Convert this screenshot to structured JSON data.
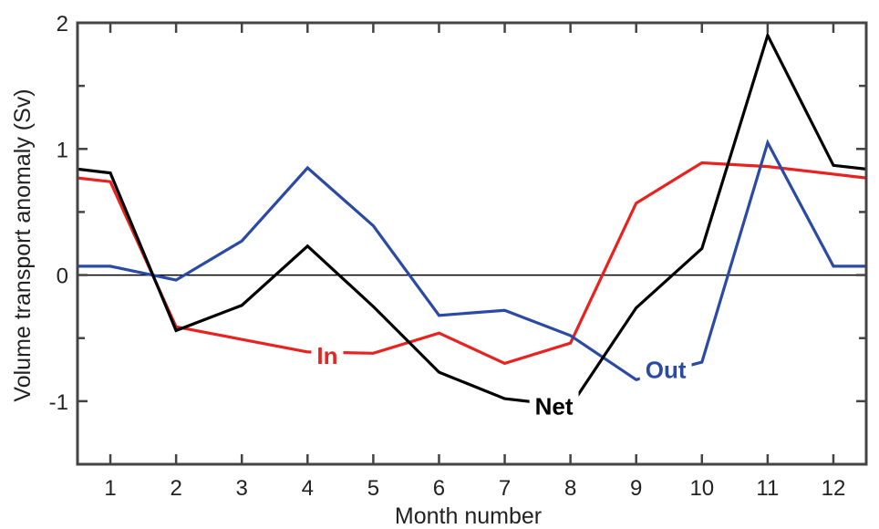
{
  "chart_data": {
    "type": "line",
    "xlabel": "Month number",
    "ylabel": "Volume transport anomaly (Sv)",
    "xlim": [
      0.5,
      12.5
    ],
    "ylim": [
      -1.5,
      2
    ],
    "x_ticks": [
      1,
      2,
      3,
      4,
      5,
      6,
      7,
      8,
      9,
      10,
      11,
      12
    ],
    "x_tick_labels": [
      "1",
      "2",
      "3",
      "4",
      "5",
      "6",
      "7",
      "8",
      "9",
      "10",
      "11",
      "12"
    ],
    "y_ticks": [
      -1,
      0,
      1,
      2
    ],
    "y_tick_labels": [
      "-1",
      "0",
      "1",
      "2"
    ],
    "y_minor_ticks": [
      -1.5,
      -0.5,
      0.5,
      1.5
    ],
    "zero_line": true,
    "grid": false,
    "series": [
      {
        "name": "In",
        "color": "#e8231f",
        "x": [
          0.5,
          1,
          2,
          4,
          5,
          6,
          7,
          8,
          9,
          10,
          11,
          12.5
        ],
        "y": [
          0.77,
          0.74,
          -0.41,
          -0.61,
          -0.62,
          -0.46,
          -0.7,
          -0.54,
          0.57,
          0.89,
          0.86,
          0.77
        ],
        "label_x": 4.3,
        "label_y": -0.64
      },
      {
        "name": "Out",
        "color": "#2a4aa6",
        "x": [
          0.5,
          1,
          2,
          3,
          4,
          5,
          6,
          7,
          8,
          9,
          10,
          11,
          12,
          12.5
        ],
        "y": [
          0.07,
          0.07,
          -0.04,
          0.27,
          0.85,
          0.39,
          -0.32,
          -0.28,
          -0.48,
          -0.83,
          -0.69,
          1.05,
          0.07,
          0.07
        ],
        "label_x": 9.45,
        "label_y": -0.75
      },
      {
        "name": "Net",
        "color": "#000000",
        "x": [
          0.5,
          1,
          2,
          3,
          4,
          5,
          6,
          7,
          8,
          9,
          10,
          11,
          12,
          12.5
        ],
        "y": [
          0.84,
          0.81,
          -0.44,
          -0.24,
          0.23,
          -0.25,
          -0.77,
          -0.98,
          -1.04,
          -0.26,
          0.21,
          1.9,
          0.87,
          0.84
        ],
        "label_x": 7.75,
        "label_y": -1.04
      }
    ]
  }
}
